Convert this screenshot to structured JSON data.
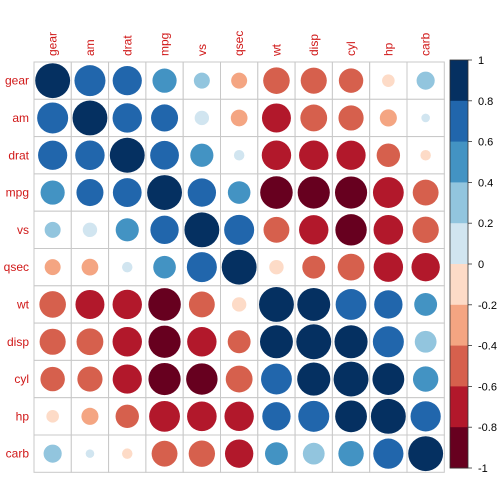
{
  "chart_data": {
    "type": "heatmap",
    "variables": [
      "gear",
      "am",
      "drat",
      "mpg",
      "vs",
      "qsec",
      "wt",
      "disp",
      "cyl",
      "hp",
      "carb"
    ],
    "matrix": [
      [
        1.0,
        0.79,
        0.7,
        0.48,
        0.21,
        -0.21,
        -0.58,
        -0.56,
        -0.49,
        -0.13,
        0.27
      ],
      [
        0.79,
        1.0,
        0.71,
        0.6,
        0.17,
        -0.23,
        -0.69,
        -0.59,
        -0.52,
        -0.24,
        0.06
      ],
      [
        0.7,
        0.71,
        1.0,
        0.68,
        0.44,
        0.09,
        -0.71,
        -0.71,
        -0.7,
        -0.45,
        -0.09
      ],
      [
        0.48,
        0.6,
        0.68,
        1.0,
        0.66,
        0.42,
        -0.87,
        -0.85,
        -0.85,
        -0.78,
        -0.55
      ],
      [
        0.21,
        0.17,
        0.44,
        0.66,
        1.0,
        0.74,
        -0.55,
        -0.71,
        -0.81,
        -0.72,
        -0.57
      ],
      [
        -0.21,
        -0.23,
        0.09,
        0.42,
        0.74,
        1.0,
        -0.17,
        -0.43,
        -0.59,
        -0.71,
        -0.66
      ],
      [
        -0.58,
        -0.69,
        -0.71,
        -0.87,
        -0.55,
        -0.17,
        1.0,
        0.89,
        0.78,
        0.66,
        0.43
      ],
      [
        -0.56,
        -0.59,
        -0.71,
        -0.85,
        -0.71,
        -0.43,
        0.89,
        1.0,
        0.9,
        0.79,
        0.39
      ],
      [
        -0.49,
        -0.52,
        -0.7,
        -0.85,
        -0.81,
        -0.59,
        0.78,
        0.9,
        1.0,
        0.83,
        0.53
      ],
      [
        -0.13,
        -0.24,
        -0.45,
        -0.78,
        -0.72,
        -0.71,
        0.66,
        0.79,
        0.83,
        1.0,
        0.75
      ],
      [
        0.27,
        0.06,
        -0.09,
        -0.55,
        -0.57,
        -0.66,
        0.43,
        0.39,
        0.53,
        0.75,
        1.0
      ]
    ],
    "colorbar": {
      "ticks": [
        "1",
        "0.8",
        "0.6",
        "0.4",
        "0.2",
        "0",
        "-0.2",
        "-0.4",
        "-0.6",
        "-0.8",
        "-1"
      ],
      "range": [
        -1,
        1
      ]
    },
    "colors": {
      "label": "#d01818",
      "grid": "#c8c8c8",
      "palette": [
        "#67001f",
        "#b2182b",
        "#d6604d",
        "#f4a582",
        "#fddbc7",
        "#f7f7f7",
        "#d1e5f0",
        "#92c5de",
        "#4393c3",
        "#2166ac",
        "#053061"
      ]
    }
  }
}
